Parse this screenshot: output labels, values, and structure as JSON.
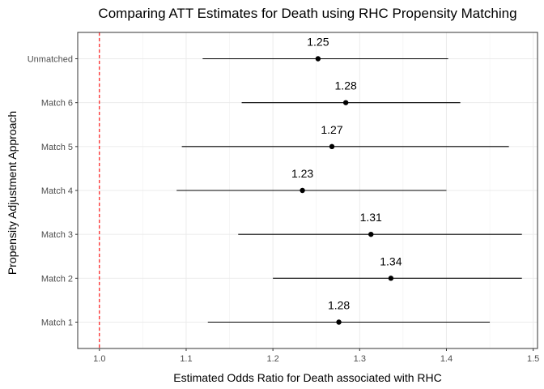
{
  "chart_data": {
    "type": "forest",
    "title": "Comparing ATT Estimates for Death using RHC Propensity Matching",
    "xlabel": "Estimated Odds Ratio for Death associated with RHC",
    "ylabel": "Propensity Adjustment Approach",
    "xlim": [
      0.975,
      1.505
    ],
    "x_ticks": [
      1.0,
      1.1,
      1.2,
      1.3,
      1.4,
      1.5
    ],
    "x_tick_labels": [
      "1.0",
      "1.1",
      "1.2",
      "1.3",
      "1.4",
      "1.5"
    ],
    "categories": [
      "Unmatched",
      "Match 6",
      "Match 5",
      "Match 4",
      "Match 3",
      "Match 2",
      "Match 1"
    ],
    "estimates": [
      1.252,
      1.284,
      1.268,
      1.234,
      1.313,
      1.336,
      1.276
    ],
    "estimate_labels": [
      "1.25",
      "1.28",
      "1.27",
      "1.23",
      "1.31",
      "1.34",
      "1.28"
    ],
    "lower": [
      1.119,
      1.164,
      1.095,
      1.089,
      1.16,
      1.2,
      1.125
    ],
    "upper": [
      1.402,
      1.416,
      1.472,
      1.4,
      1.487,
      1.487,
      1.45
    ],
    "reference_line": 1.0,
    "reference_line_color": "#ff0000",
    "point_color": "#000000",
    "grid": true,
    "panel_border": true
  }
}
